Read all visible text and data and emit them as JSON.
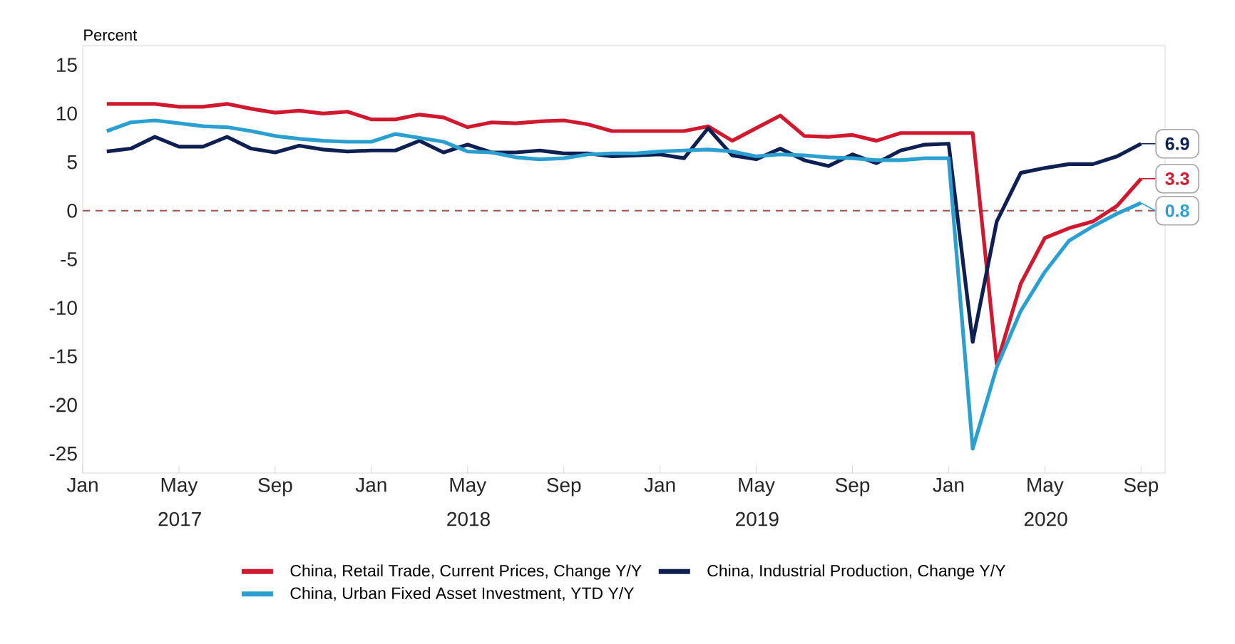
{
  "chart_data": {
    "type": "line",
    "ylabel": "Percent",
    "x": [
      "2017-02",
      "2017-03",
      "2017-04",
      "2017-05",
      "2017-06",
      "2017-07",
      "2017-08",
      "2017-09",
      "2017-10",
      "2017-11",
      "2017-12",
      "2018-01",
      "2018-02",
      "2018-03",
      "2018-04",
      "2018-05",
      "2018-06",
      "2018-07",
      "2018-08",
      "2018-09",
      "2018-10",
      "2018-11",
      "2018-12",
      "2019-01",
      "2019-02",
      "2019-03",
      "2019-04",
      "2019-05",
      "2019-06",
      "2019-07",
      "2019-08",
      "2019-09",
      "2019-10",
      "2019-11",
      "2019-12",
      "2020-01",
      "2020-02",
      "2020-03",
      "2020-04",
      "2020-05",
      "2020-06",
      "2020-07",
      "2020-08",
      "2020-09"
    ],
    "series": [
      {
        "name": "China, Retail Trade, Current Prices, Change Y/Y",
        "color": "#d0182e",
        "values": [
          11.0,
          11.0,
          11.0,
          10.7,
          10.7,
          11.0,
          10.5,
          10.1,
          10.3,
          10.0,
          10.2,
          9.4,
          9.4,
          9.9,
          9.6,
          8.6,
          9.1,
          9.0,
          9.2,
          9.3,
          8.9,
          8.2,
          8.2,
          8.2,
          8.2,
          8.7,
          7.2,
          8.5,
          9.8,
          7.7,
          7.6,
          7.8,
          7.2,
          8.0,
          8.0,
          8.0,
          8.0,
          -15.8,
          -7.5,
          -2.8,
          -1.8,
          -1.1,
          0.5,
          3.3
        ],
        "value_labels": [
          null,
          null,
          null,
          null,
          null,
          null,
          null,
          null,
          null,
          null,
          null,
          null,
          null,
          null,
          null,
          null,
          null,
          null,
          null,
          null,
          null,
          null,
          null,
          null,
          null,
          null,
          null,
          null,
          null,
          null,
          null,
          null,
          null,
          null,
          null,
          null,
          null,
          null,
          null,
          null,
          null,
          null,
          null,
          "3.3"
        ]
      },
      {
        "name": "China, Industrial Production, Change Y/Y",
        "color": "#0e1f52",
        "values": [
          6.1,
          6.4,
          7.6,
          6.6,
          6.6,
          7.6,
          6.4,
          6.0,
          6.7,
          6.3,
          6.1,
          6.2,
          6.2,
          7.2,
          6.0,
          6.8,
          6.0,
          6.0,
          6.2,
          5.9,
          5.9,
          5.6,
          5.7,
          5.8,
          5.4,
          8.5,
          5.7,
          5.3,
          6.4,
          5.2,
          4.6,
          5.8,
          4.9,
          6.2,
          6.8,
          6.9,
          -13.5,
          -1.1,
          3.9,
          4.4,
          4.8,
          4.8,
          5.6,
          6.9
        ],
        "value_labels": [
          null,
          null,
          null,
          null,
          null,
          null,
          null,
          null,
          null,
          null,
          null,
          null,
          null,
          null,
          null,
          null,
          null,
          null,
          null,
          null,
          null,
          null,
          null,
          null,
          null,
          null,
          null,
          null,
          null,
          null,
          null,
          null,
          null,
          null,
          null,
          null,
          null,
          null,
          null,
          null,
          null,
          null,
          null,
          "6.9"
        ]
      },
      {
        "name": "China, Urban Fixed Asset Investment, YTD Y/Y",
        "color": "#2a9fd0",
        "values": [
          8.2,
          9.1,
          9.3,
          9.0,
          8.7,
          8.6,
          8.2,
          7.7,
          7.4,
          7.2,
          7.1,
          7.1,
          7.9,
          7.5,
          7.1,
          6.1,
          6.0,
          5.5,
          5.3,
          5.4,
          5.8,
          5.9,
          5.9,
          6.1,
          6.2,
          6.3,
          6.1,
          5.6,
          5.8,
          5.7,
          5.5,
          5.4,
          5.2,
          5.2,
          5.4,
          5.4,
          -24.5,
          -16.1,
          -10.3,
          -6.3,
          -3.1,
          -1.6,
          -0.3,
          0.8
        ],
        "value_labels": [
          null,
          null,
          null,
          null,
          null,
          null,
          null,
          null,
          null,
          null,
          null,
          null,
          null,
          null,
          null,
          null,
          null,
          null,
          null,
          null,
          null,
          null,
          null,
          null,
          null,
          null,
          null,
          null,
          null,
          null,
          null,
          null,
          null,
          null,
          null,
          null,
          null,
          null,
          null,
          null,
          null,
          null,
          null,
          "0.8"
        ]
      }
    ],
    "xlim": [
      "2017-01",
      "2020-10"
    ],
    "xticks": [
      {
        "value": "2017-01",
        "label": "Jan"
      },
      {
        "value": "2017-05",
        "label": "May 2017"
      },
      {
        "value": "2017-09",
        "label": "Sep"
      },
      {
        "value": "2018-01",
        "label": "Jan"
      },
      {
        "value": "2018-05",
        "label": "May 2018"
      },
      {
        "value": "2018-09",
        "label": "Sep"
      },
      {
        "value": "2019-01",
        "label": "Jan"
      },
      {
        "value": "2019-05",
        "label": "May 2019"
      },
      {
        "value": "2019-09",
        "label": "Sep"
      },
      {
        "value": "2020-01",
        "label": "Jan"
      },
      {
        "value": "2020-05",
        "label": "May 2020"
      },
      {
        "value": "2020-09",
        "label": "Sep"
      }
    ],
    "ylim": [
      -27,
      17
    ],
    "yticks": [
      -25,
      -20,
      -15,
      -10,
      -5,
      0,
      5,
      10,
      15
    ],
    "ref_lines": [
      {
        "axis": "y",
        "value": 0,
        "color": "#a0524e",
        "line_style": "dashed"
      }
    ],
    "grid": false,
    "legend": "bottom",
    "marker": "none",
    "line_style": "solid"
  }
}
